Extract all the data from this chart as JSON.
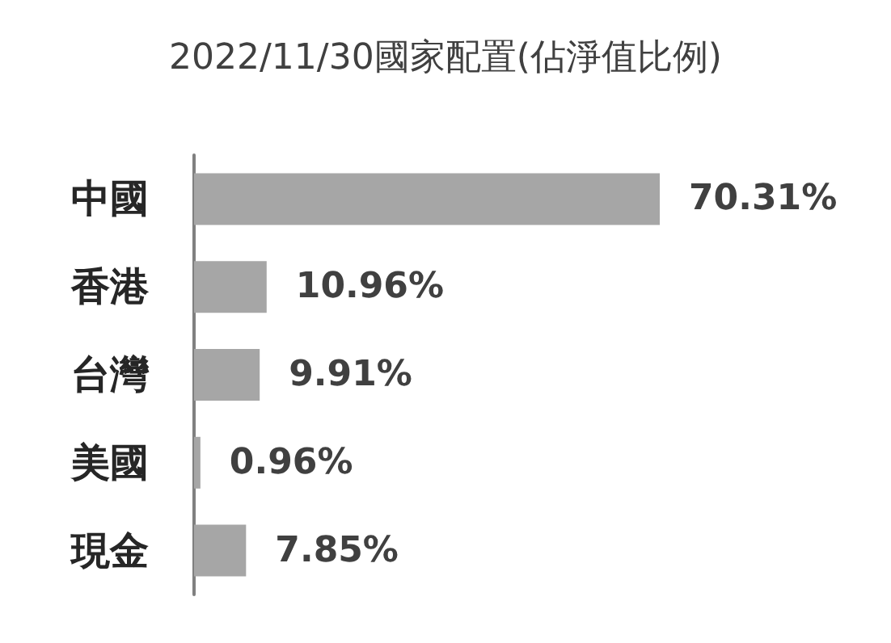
{
  "chart_data": {
    "type": "bar",
    "orientation": "horizontal",
    "title": "2022/11/30國家配置(佔淨值比例)",
    "categories": [
      "中國",
      "香港",
      "台灣",
      "美國",
      "現金"
    ],
    "values": [
      70.31,
      10.96,
      9.91,
      0.96,
      7.85
    ],
    "value_labels": [
      "70.31%",
      "10.96%",
      "9.91%",
      "0.96%",
      "7.85%"
    ],
    "color": "#a6a6a6"
  }
}
